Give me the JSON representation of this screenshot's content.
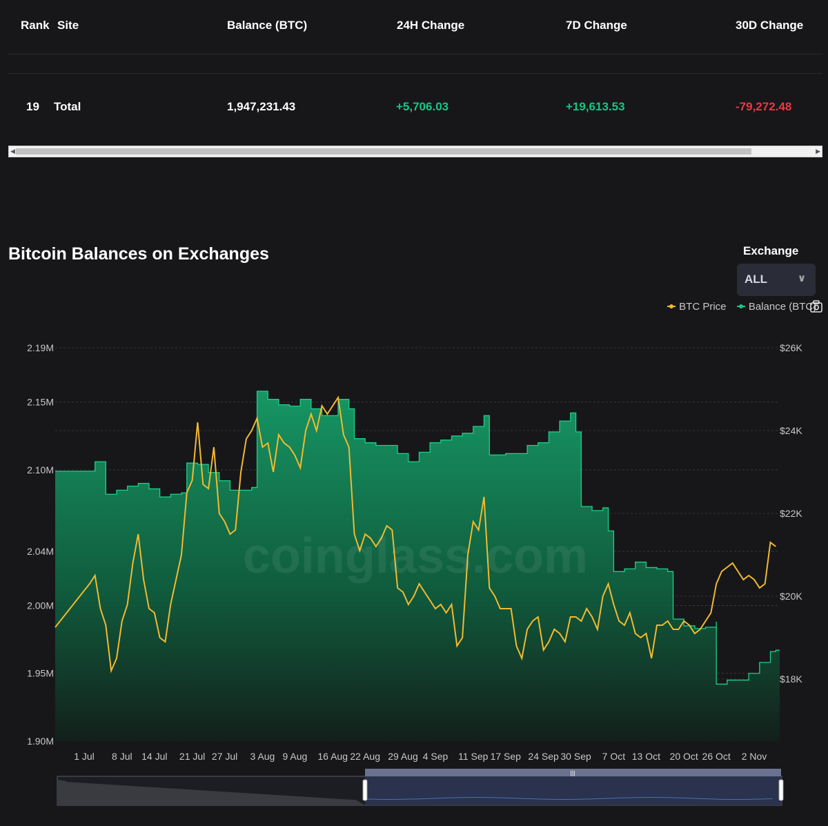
{
  "table": {
    "headers": [
      "Rank",
      "Site",
      "Balance (BTC)",
      "24H Change",
      "7D Change",
      "30D Change"
    ],
    "total_row": {
      "rank": "19",
      "site": "Total",
      "balance": "1,947,231.43",
      "change_24h": "+5,706.03",
      "change_7d": "+19,613.53",
      "change_30d": "-79,272.48"
    }
  },
  "chart_header": {
    "title": "Bitcoin Balances on Exchanges",
    "exchange_label": "Exchange",
    "exchange_selected": "ALL"
  },
  "legend": {
    "btc_price": "BTC Price",
    "balance": "Balance (BTC)"
  },
  "watermark": "coinglass.com",
  "colors": {
    "price": "#f3ba2f",
    "balance": "#16c784",
    "positive": "#16c784",
    "negative": "#ea3943",
    "background": "#17171a"
  },
  "chart_data": {
    "type": "area",
    "x_tick_labels": [
      "1 Jul",
      "8 Jul",
      "14 Jul",
      "21 Jul",
      "27 Jul",
      "3 Aug",
      "9 Aug",
      "16 Aug",
      "22 Aug",
      "29 Aug",
      "4 Sep",
      "11 Sep",
      "17 Sep",
      "24 Sep",
      "30 Sep",
      "7 Oct",
      "13 Oct",
      "20 Oct",
      "26 Oct",
      "2 Nov"
    ],
    "left_axis": {
      "tick_labels": [
        "2.19M",
        "2.15M",
        "2.10M",
        "2.04M",
        "2.00M",
        "1.95M",
        "1.90M"
      ],
      "range": [
        1.9,
        2.19
      ],
      "unit": "M"
    },
    "right_axis": {
      "tick_labels": [
        "$26K",
        "$24K",
        "$22K",
        "$20K",
        "$18K"
      ],
      "range": [
        16500,
        26000
      ]
    },
    "grid": true,
    "legend_position": "top-right",
    "series": [
      {
        "name": "Balance (BTC)",
        "axis": "left",
        "unit": "M BTC",
        "points": [
          [
            "1 Jul",
            2.099
          ],
          [
            "3 Jul",
            2.106
          ],
          [
            "5 Jul",
            2.082
          ],
          [
            "7 Jul",
            2.085
          ],
          [
            "9 Jul",
            2.088
          ],
          [
            "11 Jul",
            2.09
          ],
          [
            "13 Jul",
            2.086
          ],
          [
            "15 Jul",
            2.08
          ],
          [
            "17 Jul",
            2.082
          ],
          [
            "19 Jul",
            2.083
          ],
          [
            "20 Jul",
            2.105
          ],
          [
            "22 Jul",
            2.104
          ],
          [
            "24 Jul",
            2.098
          ],
          [
            "26 Jul",
            2.092
          ],
          [
            "28 Jul",
            2.085
          ],
          [
            "30 Jul",
            2.085
          ],
          [
            "1 Aug",
            2.087
          ],
          [
            "2 Aug",
            2.158
          ],
          [
            "4 Aug",
            2.152
          ],
          [
            "6 Aug",
            2.148
          ],
          [
            "8 Aug",
            2.147
          ],
          [
            "10 Aug",
            2.152
          ],
          [
            "12 Aug",
            2.145
          ],
          [
            "14 Aug",
            2.14
          ],
          [
            "17 Aug",
            2.152
          ],
          [
            "19 Aug",
            2.145
          ],
          [
            "20 Aug",
            2.123
          ],
          [
            "22 Aug",
            2.12
          ],
          [
            "24 Aug",
            2.118
          ],
          [
            "26 Aug",
            2.118
          ],
          [
            "28 Aug",
            2.112
          ],
          [
            "30 Aug",
            2.106
          ],
          [
            "1 Sep",
            2.113
          ],
          [
            "3 Sep",
            2.12
          ],
          [
            "5 Sep",
            2.122
          ],
          [
            "7 Sep",
            2.125
          ],
          [
            "9 Sep",
            2.127
          ],
          [
            "11 Sep",
            2.132
          ],
          [
            "13 Sep",
            2.14
          ],
          [
            "14 Sep",
            2.111
          ],
          [
            "17 Sep",
            2.112
          ],
          [
            "19 Sep",
            2.112
          ],
          [
            "21 Sep",
            2.118
          ],
          [
            "23 Sep",
            2.12
          ],
          [
            "25 Sep",
            2.128
          ],
          [
            "27 Sep",
            2.136
          ],
          [
            "29 Sep",
            2.142
          ],
          [
            "30 Sep",
            2.128
          ],
          [
            "1 Oct",
            2.073
          ],
          [
            "3 Oct",
            2.07
          ],
          [
            "5 Oct",
            2.072
          ],
          [
            "6 Oct",
            2.055
          ],
          [
            "7 Oct",
            2.025
          ],
          [
            "9 Oct",
            2.027
          ],
          [
            "11 Oct",
            2.032
          ],
          [
            "13 Oct",
            2.028
          ],
          [
            "15 Oct",
            2.027
          ],
          [
            "17 Oct",
            2.025
          ],
          [
            "18 Oct",
            1.99
          ],
          [
            "20 Oct",
            1.985
          ],
          [
            "22 Oct",
            1.983
          ],
          [
            "24 Oct",
            1.984
          ],
          [
            "26 Oct",
            1.988
          ],
          [
            "26 Oct",
            1.942
          ],
          [
            "28 Oct",
            1.945
          ],
          [
            "30 Oct",
            1.945
          ],
          [
            "1 Nov",
            1.95
          ],
          [
            "3 Nov",
            1.958
          ],
          [
            "5 Nov",
            1.966
          ],
          [
            "6 Nov",
            1.967
          ]
        ]
      },
      {
        "name": "BTC Price",
        "axis": "right",
        "unit": "USD",
        "points": [
          [
            "1 Jul",
            19250
          ],
          [
            "2 Jul",
            20300
          ],
          [
            "3 Jul",
            20500
          ],
          [
            "4 Jul",
            19700
          ],
          [
            "5 Jul",
            19300
          ],
          [
            "6 Jul",
            18200
          ],
          [
            "7 Jul",
            18500
          ],
          [
            "8 Jul",
            19400
          ],
          [
            "9 Jul",
            19800
          ],
          [
            "10 Jul",
            20800
          ],
          [
            "11 Jul",
            21500
          ],
          [
            "12 Jul",
            20400
          ],
          [
            "13 Jul",
            19700
          ],
          [
            "14 Jul",
            19600
          ],
          [
            "15 Jul",
            19000
          ],
          [
            "16 Jul",
            18900
          ],
          [
            "17 Jul",
            19800
          ],
          [
            "18 Jul",
            20400
          ],
          [
            "19 Jul",
            21000
          ],
          [
            "20 Jul",
            22500
          ],
          [
            "21 Jul",
            22800
          ],
          [
            "22 Jul",
            24200
          ],
          [
            "23 Jul",
            22700
          ],
          [
            "24 Jul",
            22600
          ],
          [
            "25 Jul",
            23600
          ],
          [
            "26 Jul",
            22000
          ],
          [
            "27 Jul",
            21800
          ],
          [
            "28 Jul",
            21500
          ],
          [
            "29 Jul",
            21600
          ],
          [
            "30 Jul",
            23000
          ],
          [
            "31 Jul",
            23800
          ],
          [
            "1 Aug",
            24000
          ],
          [
            "2 Aug",
            24300
          ],
          [
            "3 Aug",
            23600
          ],
          [
            "4 Aug",
            23700
          ],
          [
            "5 Aug",
            23000
          ],
          [
            "6 Aug",
            23900
          ],
          [
            "7 Aug",
            23700
          ],
          [
            "8 Aug",
            23600
          ],
          [
            "9 Aug",
            23400
          ],
          [
            "10 Aug",
            23100
          ],
          [
            "11 Aug",
            24000
          ],
          [
            "12 Aug",
            24400
          ],
          [
            "13 Aug",
            24000
          ],
          [
            "14 Aug",
            24600
          ],
          [
            "15 Aug",
            24400
          ],
          [
            "16 Aug",
            24600
          ],
          [
            "17 Aug",
            24800
          ],
          [
            "18 Aug",
            23900
          ],
          [
            "19 Aug",
            23600
          ],
          [
            "20 Aug",
            21500
          ],
          [
            "21 Aug",
            21100
          ],
          [
            "22 Aug",
            21500
          ],
          [
            "23 Aug",
            21400
          ],
          [
            "24 Aug",
            21200
          ],
          [
            "25 Aug",
            21400
          ],
          [
            "26 Aug",
            21700
          ],
          [
            "27 Aug",
            21600
          ],
          [
            "28 Aug",
            20200
          ],
          [
            "29 Aug",
            20100
          ],
          [
            "30 Aug",
            19800
          ],
          [
            "31 Aug",
            20000
          ],
          [
            "1 Sep",
            20300
          ],
          [
            "2 Sep",
            20100
          ],
          [
            "3 Sep",
            19900
          ],
          [
            "4 Sep",
            19700
          ],
          [
            "5 Sep",
            19800
          ],
          [
            "6 Sep",
            19600
          ],
          [
            "7 Sep",
            19800
          ],
          [
            "8 Sep",
            18800
          ],
          [
            "9 Sep",
            19000
          ],
          [
            "10 Sep",
            21000
          ],
          [
            "11 Sep",
            21800
          ],
          [
            "12 Sep",
            21600
          ],
          [
            "13 Sep",
            22400
          ],
          [
            "14 Sep",
            20200
          ],
          [
            "15 Sep",
            20000
          ],
          [
            "16 Sep",
            19700
          ],
          [
            "17 Sep",
            19700
          ],
          [
            "18 Sep",
            19700
          ],
          [
            "19 Sep",
            18800
          ],
          [
            "20 Sep",
            18500
          ],
          [
            "21 Sep",
            19200
          ],
          [
            "22 Sep",
            19400
          ],
          [
            "23 Sep",
            19500
          ],
          [
            "24 Sep",
            18700
          ],
          [
            "25 Sep",
            18900
          ],
          [
            "26 Sep",
            19200
          ],
          [
            "27 Sep",
            19100
          ],
          [
            "28 Sep",
            18900
          ],
          [
            "29 Sep",
            19500
          ],
          [
            "30 Sep",
            19500
          ],
          [
            "1 Oct",
            19400
          ],
          [
            "2 Oct",
            19700
          ],
          [
            "3 Oct",
            19500
          ],
          [
            "4 Oct",
            19200
          ],
          [
            "5 Oct",
            20000
          ],
          [
            "6 Oct",
            20300
          ],
          [
            "7 Oct",
            19800
          ],
          [
            "8 Oct",
            19400
          ],
          [
            "9 Oct",
            19300
          ],
          [
            "10 Oct",
            19600
          ],
          [
            "11 Oct",
            19100
          ],
          [
            "12 Oct",
            19000
          ],
          [
            "13 Oct",
            19100
          ],
          [
            "14 Oct",
            18500
          ],
          [
            "15 Oct",
            19300
          ],
          [
            "16 Oct",
            19300
          ],
          [
            "17 Oct",
            19400
          ],
          [
            "18 Oct",
            19200
          ],
          [
            "19 Oct",
            19200
          ],
          [
            "20 Oct",
            19400
          ],
          [
            "21 Oct",
            19300
          ],
          [
            "22 Oct",
            19100
          ],
          [
            "23 Oct",
            19200
          ],
          [
            "24 Oct",
            19400
          ],
          [
            "25 Oct",
            19600
          ],
          [
            "26 Oct",
            20300
          ],
          [
            "27 Oct",
            20600
          ],
          [
            "28 Oct",
            20700
          ],
          [
            "29 Oct",
            20800
          ],
          [
            "30 Oct",
            20600
          ],
          [
            "31 Oct",
            20400
          ],
          [
            "1 Nov",
            20500
          ],
          [
            "2 Nov",
            20400
          ],
          [
            "3 Nov",
            20200
          ],
          [
            "4 Nov",
            20300
          ],
          [
            "5 Nov",
            21300
          ],
          [
            "6 Nov",
            21200
          ]
        ]
      }
    ]
  }
}
